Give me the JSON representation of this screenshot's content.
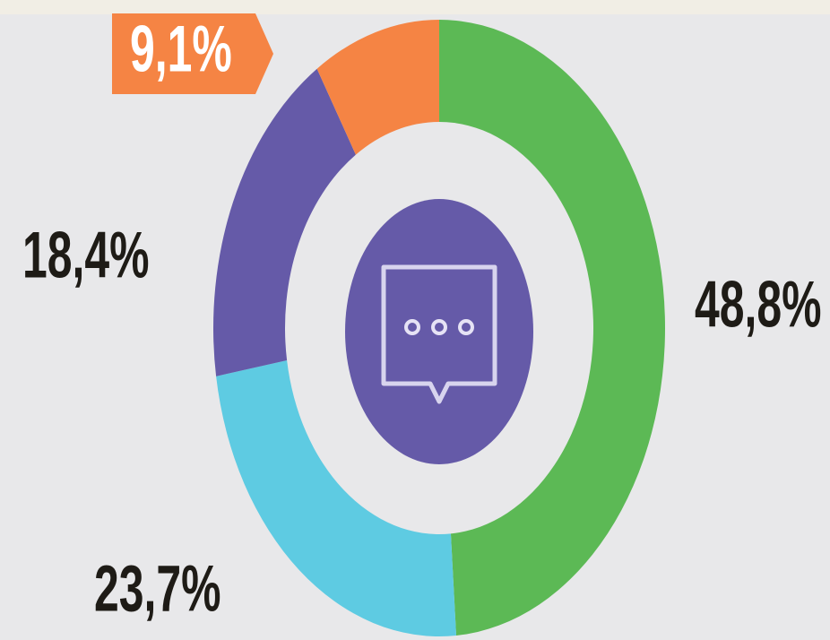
{
  "chart_data": {
    "type": "pie",
    "donut": true,
    "values": [
      48.8,
      23.7,
      18.4,
      9.1
    ],
    "value_labels": [
      "48,8%",
      "23,7%",
      "18,4%",
      "9,1%"
    ],
    "colors": [
      "#5cb955",
      "#5ecbe2",
      "#655aa8",
      "#f58444"
    ]
  }
}
